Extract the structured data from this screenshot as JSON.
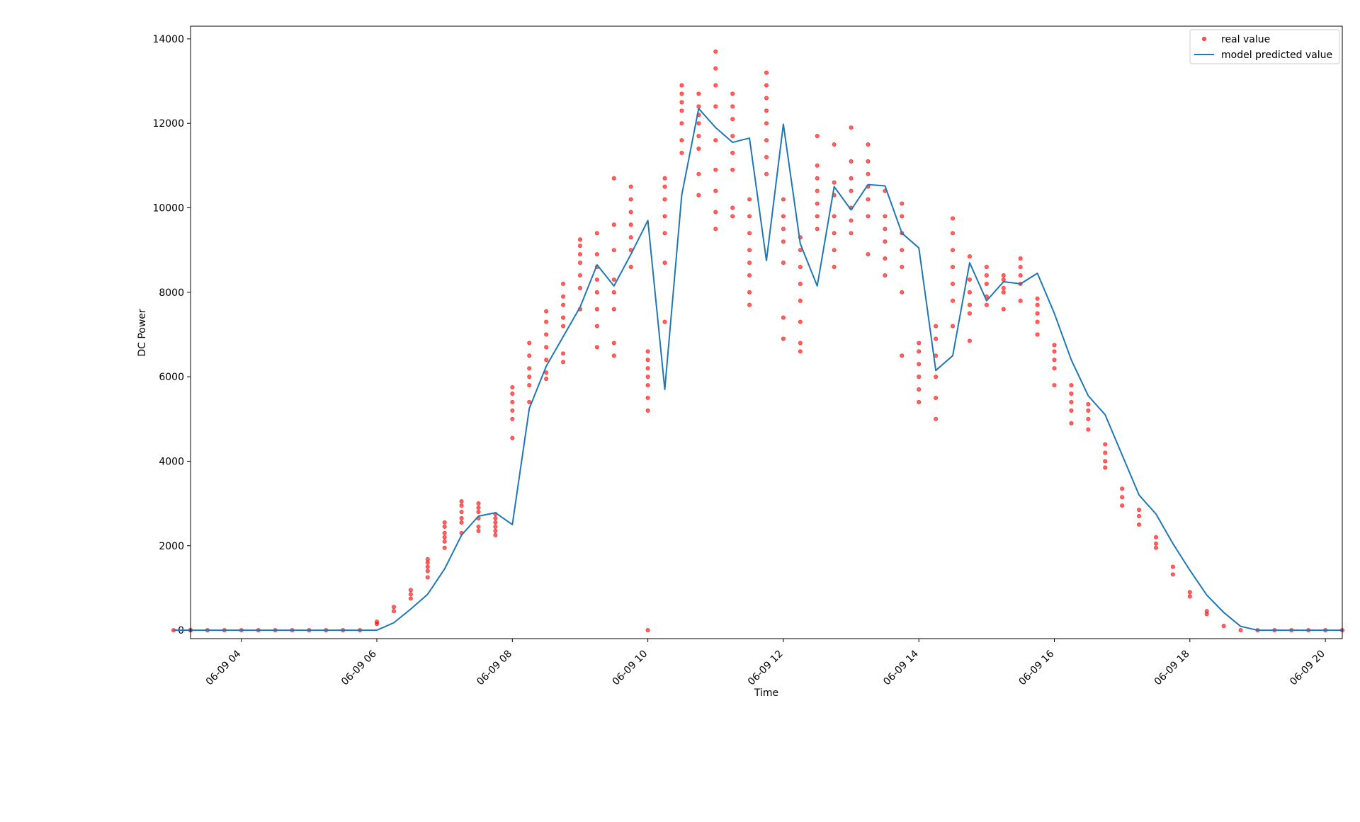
{
  "chart_data": {
    "type": "line",
    "title": "",
    "xlabel": "Time",
    "ylabel": "DC Power",
    "xlim": [
      "06-09 03:15",
      "06-09 20:15"
    ],
    "ylim": [
      -200,
      14300
    ],
    "x_ticks": [
      "06-09 04",
      "06-09 06",
      "06-09 08",
      "06-09 10",
      "06-09 12",
      "06-09 14",
      "06-09 16",
      "06-09 18",
      "06-09 20"
    ],
    "y_ticks": [
      0,
      2000,
      4000,
      6000,
      8000,
      10000,
      12000,
      14000
    ],
    "legend": {
      "placement": "top-right"
    },
    "grid": false,
    "series": [
      {
        "name": "real value",
        "kind": "scatter",
        "color": "#ff0000",
        "x": [
          "06-09 03:00",
          "06-09 03:15",
          "06-09 03:15",
          "06-09 03:30",
          "06-09 03:45",
          "06-09 04:00",
          "06-09 04:15",
          "06-09 04:30",
          "06-09 04:45",
          "06-09 05:00",
          "06-09 05:15",
          "06-09 05:30",
          "06-09 05:45",
          "06-09 06:00",
          "06-09 06:00",
          "06-09 06:15",
          "06-09 06:15",
          "06-09 06:30",
          "06-09 06:30",
          "06-09 06:30",
          "06-09 06:45",
          "06-09 06:45",
          "06-09 06:45",
          "06-09 06:45",
          "06-09 06:45",
          "06-09 07:00",
          "06-09 07:00",
          "06-09 07:00",
          "06-09 07:00",
          "06-09 07:00",
          "06-09 07:00",
          "06-09 07:15",
          "06-09 07:15",
          "06-09 07:15",
          "06-09 07:15",
          "06-09 07:15",
          "06-09 07:15",
          "06-09 07:30",
          "06-09 07:30",
          "06-09 07:30",
          "06-09 07:30",
          "06-09 07:30",
          "06-09 07:30",
          "06-09 07:45",
          "06-09 07:45",
          "06-09 07:45",
          "06-09 07:45",
          "06-09 07:45",
          "06-09 07:45",
          "06-09 08:00",
          "06-09 08:00",
          "06-09 08:00",
          "06-09 08:00",
          "06-09 08:00",
          "06-09 08:00",
          "06-09 08:15",
          "06-09 08:15",
          "06-09 08:15",
          "06-09 08:15",
          "06-09 08:15",
          "06-09 08:15",
          "06-09 08:30",
          "06-09 08:30",
          "06-09 08:30",
          "06-09 08:30",
          "06-09 08:30",
          "06-09 08:30",
          "06-09 08:30",
          "06-09 08:45",
          "06-09 08:45",
          "06-09 08:45",
          "06-09 08:45",
          "06-09 08:45",
          "06-09 08:45",
          "06-09 08:45",
          "06-09 09:00",
          "06-09 09:00",
          "06-09 09:00",
          "06-09 09:00",
          "06-09 09:00",
          "06-09 09:00",
          "06-09 09:00",
          "06-09 09:15",
          "06-09 09:15",
          "06-09 09:15",
          "06-09 09:15",
          "06-09 09:15",
          "06-09 09:15",
          "06-09 09:15",
          "06-09 09:15",
          "06-09 09:30",
          "06-09 09:30",
          "06-09 09:30",
          "06-09 09:30",
          "06-09 09:30",
          "06-09 09:30",
          "06-09 09:30",
          "06-09 09:30",
          "06-09 09:45",
          "06-09 09:45",
          "06-09 09:45",
          "06-09 09:45",
          "06-09 09:45",
          "06-09 09:45",
          "06-09 09:45",
          "06-09 10:00",
          "06-09 10:00",
          "06-09 10:00",
          "06-09 10:00",
          "06-09 10:00",
          "06-09 10:00",
          "06-09 10:00",
          "06-09 10:00",
          "06-09 10:15",
          "06-09 10:15",
          "06-09 10:15",
          "06-09 10:15",
          "06-09 10:15",
          "06-09 10:15",
          "06-09 10:15",
          "06-09 10:30",
          "06-09 10:30",
          "06-09 10:30",
          "06-09 10:30",
          "06-09 10:30",
          "06-09 10:30",
          "06-09 10:30",
          "06-09 10:45",
          "06-09 10:45",
          "06-09 10:45",
          "06-09 10:45",
          "06-09 10:45",
          "06-09 10:45",
          "06-09 10:45",
          "06-09 10:45",
          "06-09 11:00",
          "06-09 11:00",
          "06-09 11:00",
          "06-09 11:00",
          "06-09 11:00",
          "06-09 11:00",
          "06-09 11:00",
          "06-09 11:00",
          "06-09 11:00",
          "06-09 11:15",
          "06-09 11:15",
          "06-09 11:15",
          "06-09 11:15",
          "06-09 11:15",
          "06-09 11:15",
          "06-09 11:15",
          "06-09 11:15",
          "06-09 11:30",
          "06-09 11:30",
          "06-09 11:30",
          "06-09 11:30",
          "06-09 11:30",
          "06-09 11:30",
          "06-09 11:30",
          "06-09 11:30",
          "06-09 11:45",
          "06-09 11:45",
          "06-09 11:45",
          "06-09 11:45",
          "06-09 11:45",
          "06-09 11:45",
          "06-09 11:45",
          "06-09 11:45",
          "06-09 12:00",
          "06-09 12:00",
          "06-09 12:00",
          "06-09 12:00",
          "06-09 12:00",
          "06-09 12:00",
          "06-09 12:00",
          "06-09 12:15",
          "06-09 12:15",
          "06-09 12:15",
          "06-09 12:15",
          "06-09 12:15",
          "06-09 12:15",
          "06-09 12:15",
          "06-09 12:15",
          "06-09 12:30",
          "06-09 12:30",
          "06-09 12:30",
          "06-09 12:30",
          "06-09 12:30",
          "06-09 12:30",
          "06-09 12:30",
          "06-09 12:45",
          "06-09 12:45",
          "06-09 12:45",
          "06-09 12:45",
          "06-09 12:45",
          "06-09 12:45",
          "06-09 12:45",
          "06-09 13:00",
          "06-09 13:00",
          "06-09 13:00",
          "06-09 13:00",
          "06-09 13:00",
          "06-09 13:00",
          "06-09 13:00",
          "06-09 13:15",
          "06-09 13:15",
          "06-09 13:15",
          "06-09 13:15",
          "06-09 13:15",
          "06-09 13:15",
          "06-09 13:15",
          "06-09 13:30",
          "06-09 13:30",
          "06-09 13:30",
          "06-09 13:30",
          "06-09 13:30",
          "06-09 13:30",
          "06-09 13:45",
          "06-09 13:45",
          "06-09 13:45",
          "06-09 13:45",
          "06-09 13:45",
          "06-09 13:45",
          "06-09 13:45",
          "06-09 14:00",
          "06-09 14:00",
          "06-09 14:00",
          "06-09 14:00",
          "06-09 14:00",
          "06-09 14:00",
          "06-09 14:15",
          "06-09 14:15",
          "06-09 14:15",
          "06-09 14:15",
          "06-09 14:15",
          "06-09 14:15",
          "06-09 14:30",
          "06-09 14:30",
          "06-09 14:30",
          "06-09 14:30",
          "06-09 14:30",
          "06-09 14:30",
          "06-09 14:30",
          "06-09 14:45",
          "06-09 14:45",
          "06-09 14:45",
          "06-09 14:45",
          "06-09 14:45",
          "06-09 14:45",
          "06-09 15:00",
          "06-09 15:00",
          "06-09 15:00",
          "06-09 15:00",
          "06-09 15:00",
          "06-09 15:15",
          "06-09 15:15",
          "06-09 15:15",
          "06-09 15:15",
          "06-09 15:15",
          "06-09 15:30",
          "06-09 15:30",
          "06-09 15:30",
          "06-09 15:30",
          "06-09 15:30",
          "06-09 15:45",
          "06-09 15:45",
          "06-09 15:45",
          "06-09 15:45",
          "06-09 15:45",
          "06-09 16:00",
          "06-09 16:00",
          "06-09 16:00",
          "06-09 16:00",
          "06-09 16:00",
          "06-09 16:15",
          "06-09 16:15",
          "06-09 16:15",
          "06-09 16:15",
          "06-09 16:15",
          "06-09 16:30",
          "06-09 16:30",
          "06-09 16:30",
          "06-09 16:30",
          "06-09 16:45",
          "06-09 16:45",
          "06-09 16:45",
          "06-09 16:45",
          "06-09 17:00",
          "06-09 17:00",
          "06-09 17:00",
          "06-09 17:15",
          "06-09 17:15",
          "06-09 17:15",
          "06-09 17:30",
          "06-09 17:30",
          "06-09 17:30",
          "06-09 17:45",
          "06-09 17:45",
          "06-09 18:00",
          "06-09 18:00",
          "06-09 18:15",
          "06-09 18:15",
          "06-09 18:30",
          "06-09 18:45",
          "06-09 19:00",
          "06-09 19:15",
          "06-09 19:30",
          "06-09 19:45",
          "06-09 20:00",
          "06-09 20:15"
        ],
        "y": [
          0,
          0,
          0,
          0,
          0,
          0,
          0,
          0,
          0,
          0,
          0,
          0,
          0,
          150,
          200,
          450,
          550,
          750,
          850,
          950,
          1250,
          1400,
          1500,
          1600,
          1680,
          1950,
          2100,
          2200,
          2300,
          2450,
          2550,
          2300,
          2550,
          2650,
          2800,
          2950,
          3050,
          2350,
          2450,
          2650,
          2800,
          2900,
          3000,
          2250,
          2350,
          2450,
          2550,
          2650,
          2750,
          4550,
          5000,
          5200,
          5400,
          5600,
          5750,
          5400,
          5800,
          6000,
          6200,
          6500,
          6800,
          5950,
          6100,
          6400,
          6700,
          7000,
          7300,
          7550,
          6350,
          6550,
          7200,
          7400,
          7700,
          7900,
          8200,
          7600,
          8100,
          8400,
          8700,
          8900,
          9100,
          9250,
          6700,
          7200,
          7600,
          8000,
          8300,
          8600,
          8900,
          9400,
          6500,
          6800,
          7600,
          8000,
          8300,
          9000,
          9600,
          10700,
          8600,
          9000,
          9300,
          9600,
          9900,
          10200,
          10500,
          0,
          5200,
          5500,
          5800,
          6000,
          6200,
          6400,
          6600,
          7300,
          8700,
          9400,
          9800,
          10200,
          10500,
          10700,
          11300,
          11600,
          12000,
          12300,
          12500,
          12700,
          12900,
          10300,
          10800,
          11400,
          11700,
          12000,
          12200,
          12400,
          12700,
          9500,
          9900,
          10400,
          10900,
          11600,
          12400,
          12900,
          13300,
          13700,
          9800,
          10000,
          10900,
          11300,
          11700,
          12100,
          12400,
          12700,
          7700,
          8000,
          8400,
          8700,
          9000,
          9400,
          9800,
          10200,
          10800,
          11200,
          11600,
          12000,
          12300,
          12600,
          12900,
          13200,
          6900,
          7400,
          8700,
          9200,
          9500,
          9800,
          10200,
          6600,
          6800,
          7300,
          7800,
          8200,
          8600,
          9000,
          9300,
          9500,
          9800,
          10100,
          10400,
          10700,
          11000,
          11700,
          8600,
          9000,
          9400,
          9800,
          10300,
          10600,
          11500,
          9400,
          9700,
          10000,
          10400,
          10700,
          11100,
          11900,
          8900,
          9800,
          10200,
          10500,
          10800,
          11100,
          11500,
          8400,
          8800,
          9200,
          9500,
          9800,
          10400,
          6500,
          8000,
          8600,
          9000,
          9400,
          9800,
          10100,
          5400,
          5700,
          6000,
          6300,
          6600,
          6800,
          5000,
          5500,
          6000,
          6500,
          6900,
          7200,
          7200,
          7800,
          8200,
          8600,
          9000,
          9400,
          9750,
          6850,
          7500,
          7700,
          8000,
          8300,
          8850,
          7700,
          7900,
          8200,
          8400,
          8600,
          7600,
          8000,
          8100,
          8300,
          8400,
          7800,
          8200,
          8400,
          8600,
          8800,
          7000,
          7300,
          7500,
          7700,
          7850,
          5800,
          6200,
          6400,
          6600,
          6750,
          4900,
          5200,
          5400,
          5600,
          5800,
          4750,
          5000,
          5200,
          5350,
          3850,
          4000,
          4200,
          4400,
          2950,
          3150,
          3350,
          2500,
          2700,
          2850,
          1950,
          2050,
          2200,
          1320,
          1500,
          800,
          900,
          380,
          450,
          100,
          0,
          0,
          0,
          0,
          0,
          0,
          0
        ]
      },
      {
        "name": "model predicted value",
        "kind": "line",
        "color": "#1f77b4",
        "x": [
          "06-09 03:00",
          "06-09 03:15",
          "06-09 03:30",
          "06-09 03:45",
          "06-09 04:00",
          "06-09 04:15",
          "06-09 04:30",
          "06-09 04:45",
          "06-09 05:00",
          "06-09 05:15",
          "06-09 05:30",
          "06-09 05:45",
          "06-09 06:00",
          "06-09 06:15",
          "06-09 06:30",
          "06-09 06:45",
          "06-09 07:00",
          "06-09 07:15",
          "06-09 07:30",
          "06-09 07:45",
          "06-09 08:00",
          "06-09 08:15",
          "06-09 08:30",
          "06-09 08:45",
          "06-09 09:00",
          "06-09 09:15",
          "06-09 09:30",
          "06-09 09:45",
          "06-09 10:00",
          "06-09 10:15",
          "06-09 10:30",
          "06-09 10:45",
          "06-09 11:00",
          "06-09 11:15",
          "06-09 11:30",
          "06-09 11:45",
          "06-09 12:00",
          "06-09 12:15",
          "06-09 12:30",
          "06-09 12:45",
          "06-09 13:00",
          "06-09 13:15",
          "06-09 13:30",
          "06-09 13:45",
          "06-09 14:00",
          "06-09 14:15",
          "06-09 14:30",
          "06-09 14:45",
          "06-09 15:00",
          "06-09 15:15",
          "06-09 15:30",
          "06-09 15:45",
          "06-09 16:00",
          "06-09 16:15",
          "06-09 16:30",
          "06-09 16:45",
          "06-09 17:00",
          "06-09 17:15",
          "06-09 17:30",
          "06-09 17:45",
          "06-09 18:00",
          "06-09 18:15",
          "06-09 18:30",
          "06-09 18:45",
          "06-09 19:00",
          "06-09 19:15",
          "06-09 19:30",
          "06-09 19:45",
          "06-09 20:00",
          "06-09 20:15"
        ],
        "y": [
          0,
          0,
          0,
          0,
          0,
          0,
          0,
          0,
          0,
          0,
          0,
          0,
          0,
          175,
          500,
          850,
          1450,
          2250,
          2700,
          2780,
          2500,
          5250,
          6250,
          6950,
          7650,
          8650,
          8150,
          8900,
          9700,
          5700,
          10300,
          12350,
          11900,
          11550,
          11650,
          8750,
          11980,
          9150,
          8150,
          10500,
          9950,
          10550,
          10520,
          9400,
          9050,
          6150,
          6500,
          8700,
          7800,
          8250,
          8200,
          8450,
          7500,
          6400,
          5550,
          5100,
          4150,
          3200,
          2750,
          2050,
          1420,
          830,
          420,
          90,
          0,
          0,
          0,
          0,
          0,
          0
        ]
      }
    ]
  }
}
